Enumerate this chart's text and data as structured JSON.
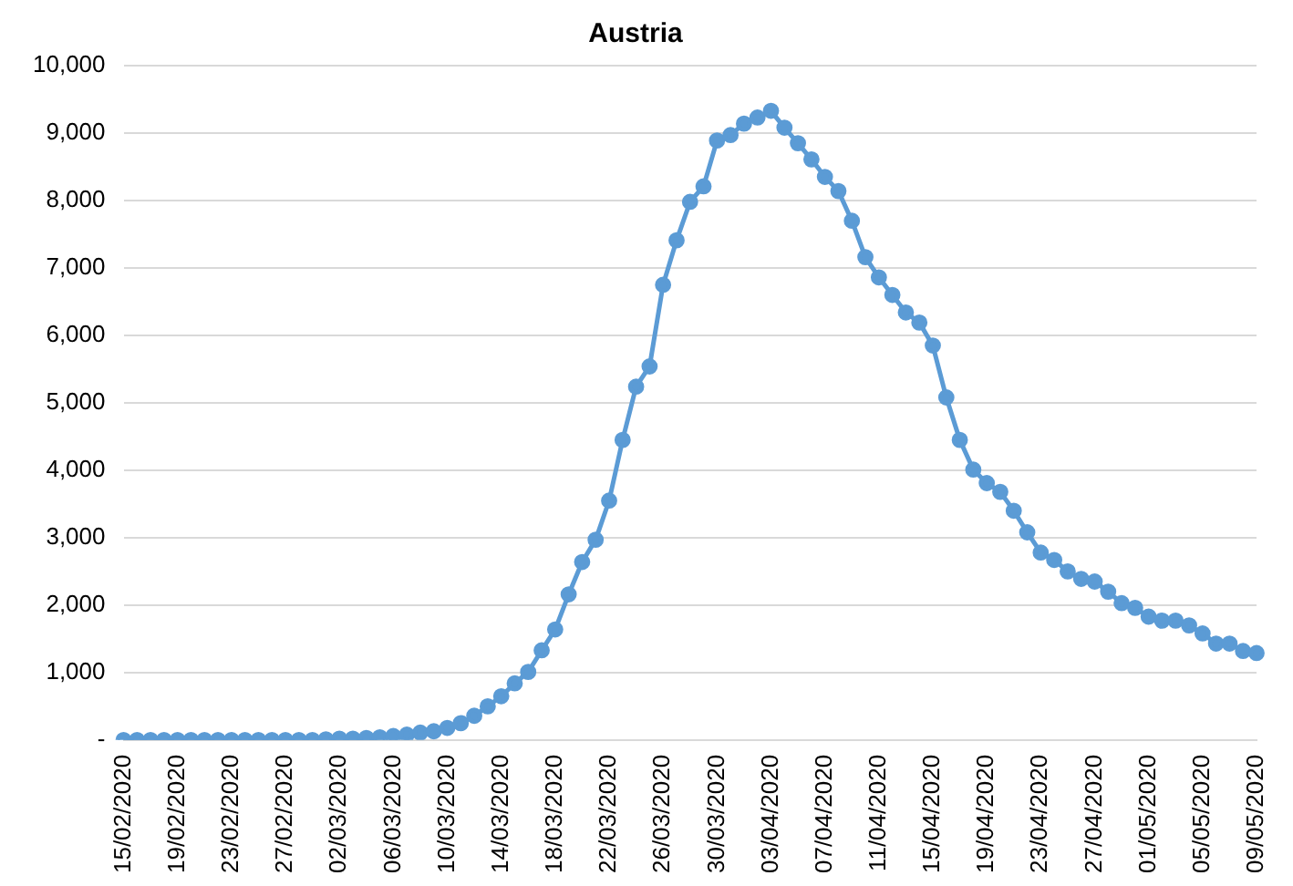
{
  "chart_data": {
    "type": "line",
    "title": "Austria",
    "categories": [
      "15/02/2020",
      null,
      null,
      null,
      "19/02/2020",
      null,
      null,
      null,
      "23/02/2020",
      null,
      null,
      null,
      "27/02/2020",
      null,
      null,
      null,
      "02/03/2020",
      null,
      null,
      null,
      "06/03/2020",
      null,
      null,
      null,
      "10/03/2020",
      null,
      null,
      null,
      "14/03/2020",
      null,
      null,
      null,
      "18/03/2020",
      null,
      null,
      null,
      "22/03/2020",
      null,
      null,
      null,
      "26/03/2020",
      null,
      null,
      null,
      "30/03/2020",
      null,
      null,
      null,
      "03/04/2020",
      null,
      null,
      null,
      "07/04/2020",
      null,
      null,
      null,
      "11/04/2020",
      null,
      null,
      null,
      "15/04/2020",
      null,
      null,
      null,
      "19/04/2020",
      null,
      null,
      null,
      "23/04/2020",
      null,
      null,
      null,
      "27/04/2020",
      null,
      null,
      null,
      "01/05/2020",
      null,
      null,
      null,
      "05/05/2020",
      null,
      null,
      null,
      "09/05/2020"
    ],
    "series": [
      {
        "color": "#5b9bd5",
        "values": [
          0,
          0,
          0,
          0,
          0,
          0,
          0,
          0,
          0,
          0,
          0,
          0,
          0,
          0,
          0,
          10,
          20,
          20,
          30,
          40,
          60,
          80,
          110,
          130,
          180,
          250,
          360,
          500,
          650,
          840,
          1010,
          1330,
          1640,
          2160,
          2640,
          2970,
          3550,
          4450,
          5240,
          5540,
          6750,
          7410,
          7980,
          8210,
          8890,
          8970,
          9140,
          9230,
          9330,
          9080,
          8850,
          8610,
          8350,
          8140,
          7700,
          7160,
          6860,
          6600,
          6340,
          6190,
          5850,
          5080,
          4450,
          4010,
          3810,
          3680,
          3400,
          3080,
          2780,
          2670,
          2500,
          2390,
          2350,
          2200,
          2030,
          1960,
          1830,
          1770,
          1770,
          1700,
          1580,
          1430,
          1430,
          1320,
          1290
        ]
      }
    ],
    "ylim": [
      0,
      10000
    ],
    "yticks": [
      {
        "value": 0,
        "label": "-"
      },
      {
        "value": 1000,
        "label": "1,000"
      },
      {
        "value": 2000,
        "label": "2,000"
      },
      {
        "value": 3000,
        "label": "3,000"
      },
      {
        "value": 4000,
        "label": "4,000"
      },
      {
        "value": 5000,
        "label": "5,000"
      },
      {
        "value": 6000,
        "label": "6,000"
      },
      {
        "value": 7000,
        "label": "7,000"
      },
      {
        "value": 8000,
        "label": "8,000"
      },
      {
        "value": 9000,
        "label": "9,000"
      },
      {
        "value": 10000,
        "label": "10,000"
      }
    ],
    "grid": "y",
    "legend": false,
    "marker": "circle",
    "line_style": "solid"
  }
}
